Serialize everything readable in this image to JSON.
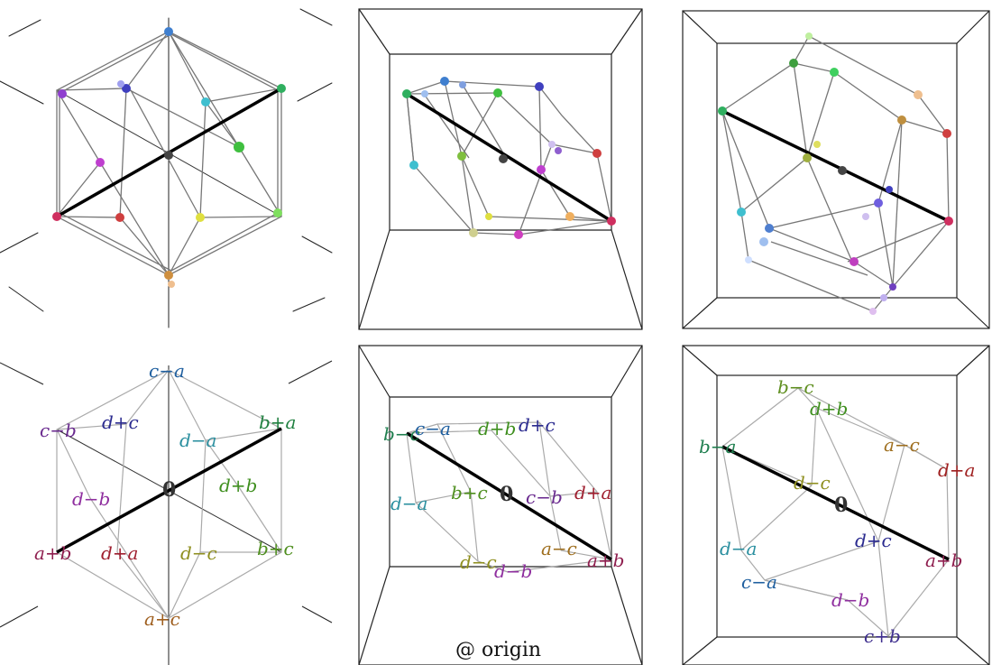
{
  "caption": "@ origin",
  "origin_label": "0",
  "colors": {
    "c_minus_a": "#1f5f9f",
    "c_minus_b": "#6a2a8f",
    "d_plus_c": "#2a2a8f",
    "d_minus_a": "#2a8f9f",
    "b_plus_a": "#1f7f3f",
    "d_plus_b": "#3f8f1f",
    "d_minus_b": "#8f2f9f",
    "a_plus_b": "#8f1f4f",
    "d_plus_a": "#9f1f2f",
    "d_minus_c": "#8f8f1f",
    "b_plus_c": "#4f8f1f",
    "a_plus_c": "#9f5f1f",
    "b_minus_c": "#5f8f1f",
    "a_minus_c": "#9f6f1f",
    "c_plus_b": "#3f2f8f",
    "b_minus_a": "#1f7f4f",
    "d_plus_a_alt": "#9f1f1f"
  },
  "panels": {
    "p4": {
      "c_minus_a": "c−a",
      "c_minus_b": "c−b",
      "d_plus_c": "d+c",
      "d_minus_a": "d−a",
      "b_plus_a": "b+a",
      "d_minus_b": "d−b",
      "d_plus_b": "d+b",
      "a_plus_b": "a+b",
      "d_plus_a": "d+a",
      "d_minus_c": "d−c",
      "b_plus_c": "b+c",
      "a_plus_c": "a+c"
    },
    "p5": {
      "b_minus_c": "b−c",
      "c_minus_a": "c−a",
      "d_plus_b": "d+b",
      "d_plus_c": "d+c",
      "d_minus_a": "d−a",
      "b_plus_c": "b+c",
      "c_minus_b": "c−b",
      "d_plus_a": "d+a",
      "a_minus_c": "a−c",
      "d_minus_c": "d−c",
      "d_minus_b": "d−b",
      "a_plus_b": "a+b"
    },
    "p6": {
      "b_minus_c": "b−c",
      "d_plus_b": "d+b",
      "b_minus_a": "b−a",
      "a_minus_c": "a−c",
      "d_plus_a": "d+a",
      "d_plus_c": "d+c",
      "d_minus_a": "d−a",
      "d_minus_c": "d−c",
      "c_minus_a": "c−a",
      "a_plus_b": "a+b",
      "d_minus_b": "d−b",
      "c_plus_b": "c+b"
    }
  }
}
